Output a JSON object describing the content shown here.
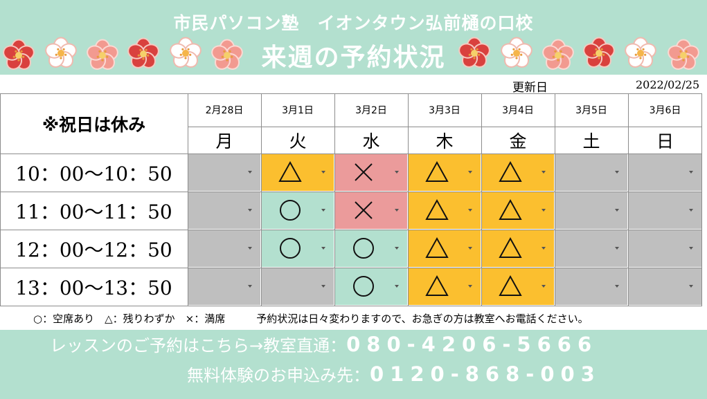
{
  "header": {
    "school_title": "市民パソコン塾　イオンタウン弘前樋の口校",
    "main_title": "来週の予約状況",
    "bg_color": "#b3e0cf"
  },
  "update": {
    "label": "更新日",
    "date": "2022/02/25"
  },
  "table": {
    "holiday_note": "※祝日は休み",
    "days": [
      {
        "date": "2月28日",
        "dow": "月"
      },
      {
        "date": "3月1日",
        "dow": "火"
      },
      {
        "date": "3月2日",
        "dow": "水"
      },
      {
        "date": "3月3日",
        "dow": "木"
      },
      {
        "date": "3月4日",
        "dow": "金"
      },
      {
        "date": "3月5日",
        "dow": "土"
      },
      {
        "date": "3月6日",
        "dow": "日"
      }
    ],
    "rows": [
      {
        "time": "10：00～10：50",
        "slots": [
          "none",
          "few",
          "full",
          "few",
          "few",
          "none",
          "none"
        ]
      },
      {
        "time": "11：00～11：50",
        "slots": [
          "none",
          "open",
          "full",
          "few",
          "few",
          "none",
          "none"
        ]
      },
      {
        "time": "12：00～12：50",
        "slots": [
          "none",
          "open",
          "open",
          "few",
          "few",
          "none",
          "none"
        ]
      },
      {
        "time": "13：00～13：50",
        "slots": [
          "none",
          "none",
          "open",
          "few",
          "few",
          "none",
          "none"
        ]
      }
    ],
    "status_colors": {
      "none": "#bfbfbf",
      "open": "#b3e0cf",
      "few": "#fbbf2f",
      "full": "#eb9b9b"
    }
  },
  "legend": {
    "text": "○：空席あり　△：残りわずか　×：満席　　　予約状況は日々変わりますので、お急ぎの方は教室へお電話ください。"
  },
  "footer": {
    "lesson_label": "レッスンのご予約はこちら→教室直通：",
    "lesson_number": "080-4206-5666",
    "trial_label": "無料体験のお申込み先：",
    "trial_number": "0120-868-003"
  }
}
